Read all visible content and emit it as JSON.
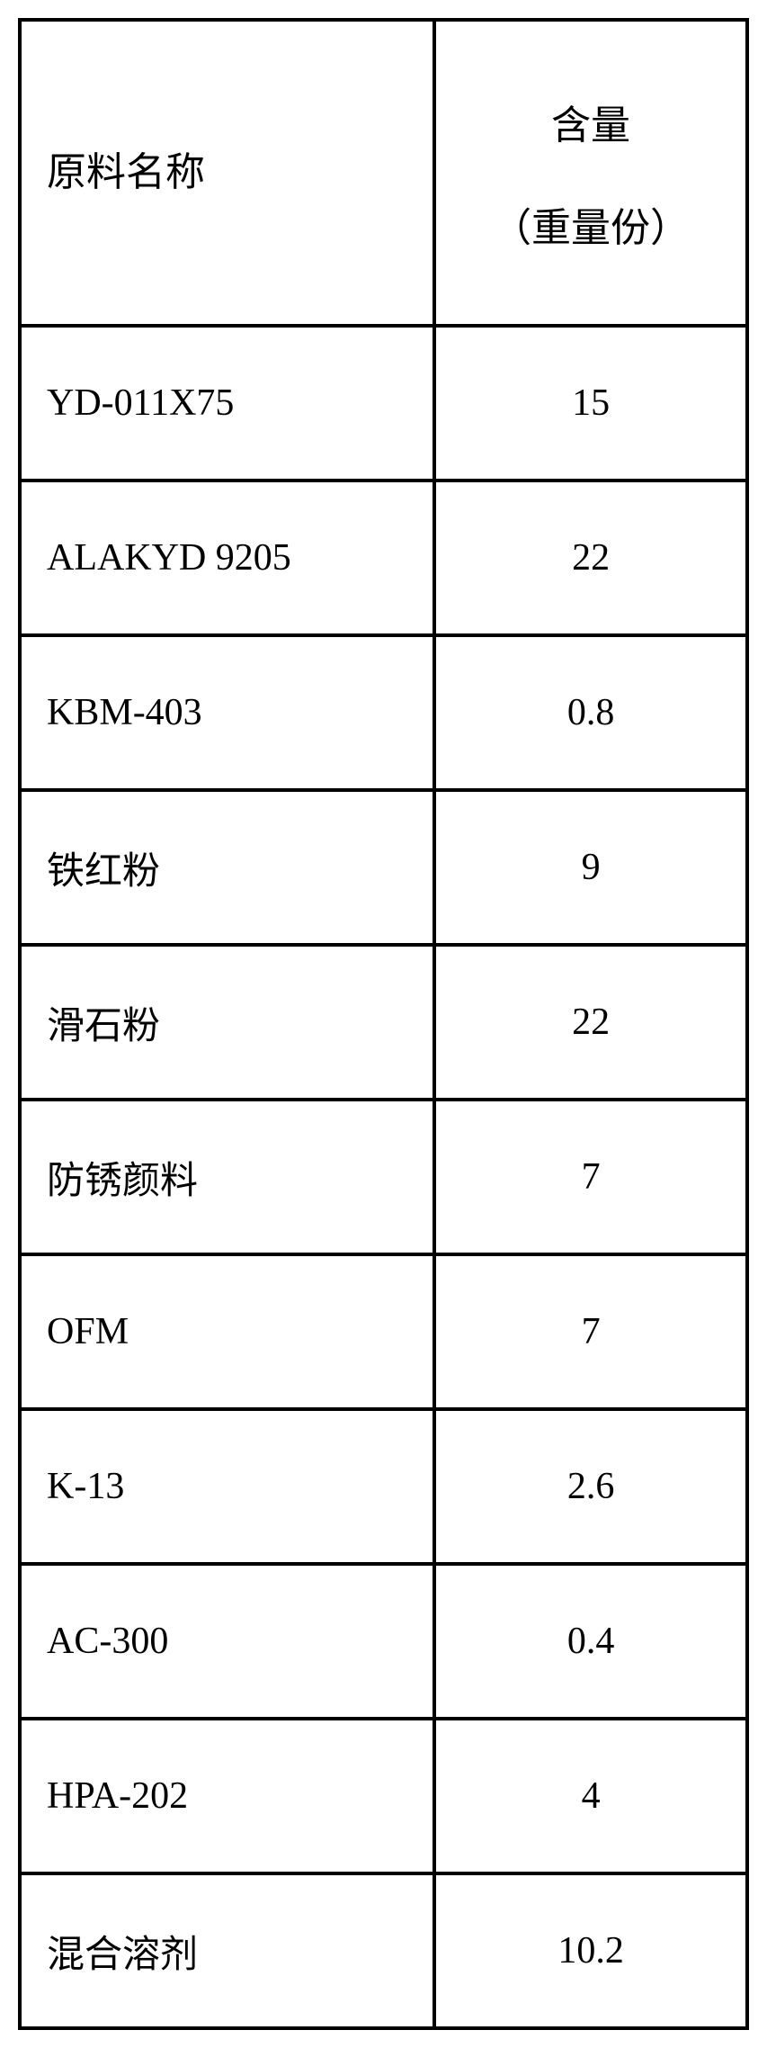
{
  "table": {
    "type": "table",
    "columns": [
      {
        "label_line1": "原料名称",
        "label_line2": "",
        "width_pct": 57,
        "align": "left"
      },
      {
        "label_line1": "含量",
        "label_line2": "（重量份）",
        "width_pct": 43,
        "align": "center"
      }
    ],
    "rows": [
      {
        "name": "YD-011X75",
        "value": "15",
        "name_font": "latin"
      },
      {
        "name": "ALAKYD 9205",
        "value": "22",
        "name_font": "latin"
      },
      {
        "name": "KBM-403",
        "value": "0.8",
        "name_font": "latin"
      },
      {
        "name": "铁红粉",
        "value": "9",
        "name_font": "cjk"
      },
      {
        "name": "滑石粉",
        "value": "22",
        "name_font": "cjk"
      },
      {
        "name": "防锈颜料",
        "value": "7",
        "name_font": "cjk"
      },
      {
        "name": "OFM",
        "value": "7",
        "name_font": "latin"
      },
      {
        "name": "K-13",
        "value": "2.6",
        "name_font": "latin"
      },
      {
        "name": "AC-300",
        "value": "0.4",
        "name_font": "latin"
      },
      {
        "name": "HPA-202",
        "value": "4",
        "name_font": "latin"
      },
      {
        "name": "混合溶剂",
        "value": "10.2",
        "name_font": "cjk"
      }
    ],
    "border_color": "#000000",
    "border_width": 4,
    "background_color": "#ffffff",
    "header_fontsize": 44,
    "data_fontsize": 42,
    "header_row_height": 340,
    "data_row_height": 172
  }
}
